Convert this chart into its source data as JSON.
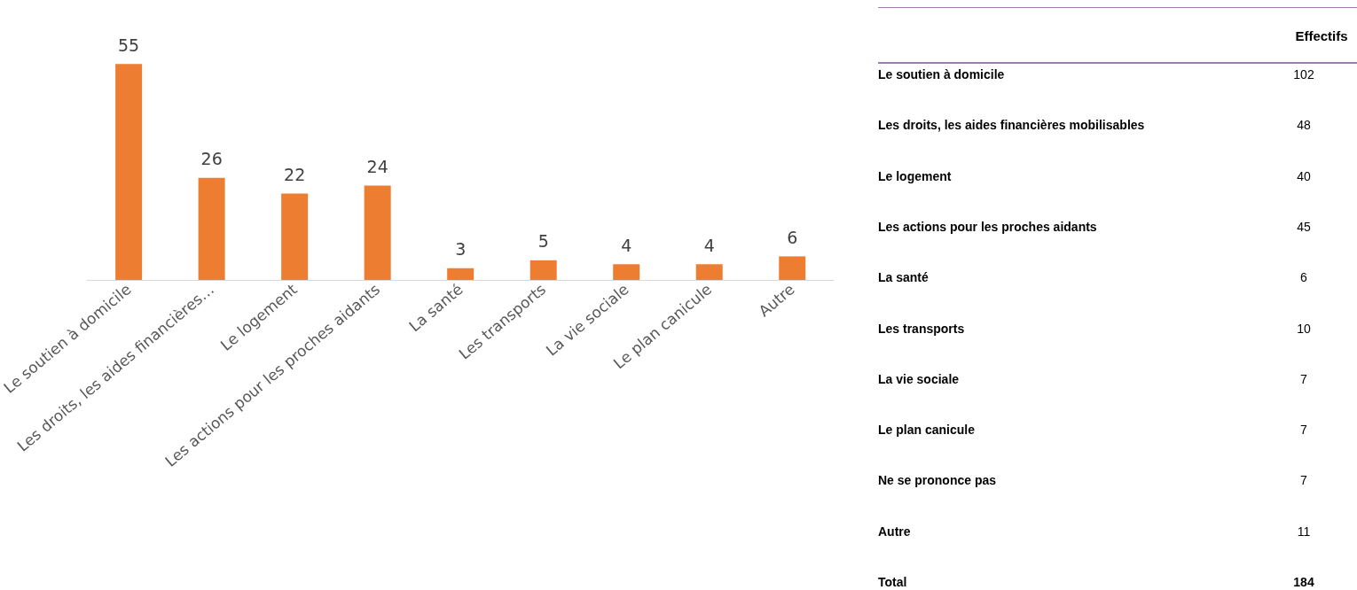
{
  "chart_data": [
    {
      "type": "bar",
      "categories": [
        "Le soutien à domicile",
        "Les droits, les aides financières…",
        "Le logement",
        "Les actions pour les proches aidants",
        "La santé",
        "Les transports",
        "La vie sociale",
        "Le plan canicule",
        "Autre"
      ],
      "values": [
        55,
        26,
        22,
        24,
        3,
        5,
        4,
        4,
        6
      ],
      "color": "#ed7d31",
      "data_labels": true
    },
    {
      "type": "other",
      "ylabel": "Effectifs",
      "categories": [
        "Le soutien à domicile",
        "Les droits, les aides financières mobilisables",
        "Le logement",
        "Les actions pour les proches aidants",
        "La santé",
        "Les transports",
        "La vie sociale",
        "Le plan canicule",
        "Ne se prononce pas",
        "Autre",
        "Total"
      ],
      "values": [
        102,
        48,
        40,
        45,
        6,
        10,
        7,
        7,
        7,
        11,
        184
      ],
      "color": "#a07ab0",
      "data_labels": true
    }
  ]
}
